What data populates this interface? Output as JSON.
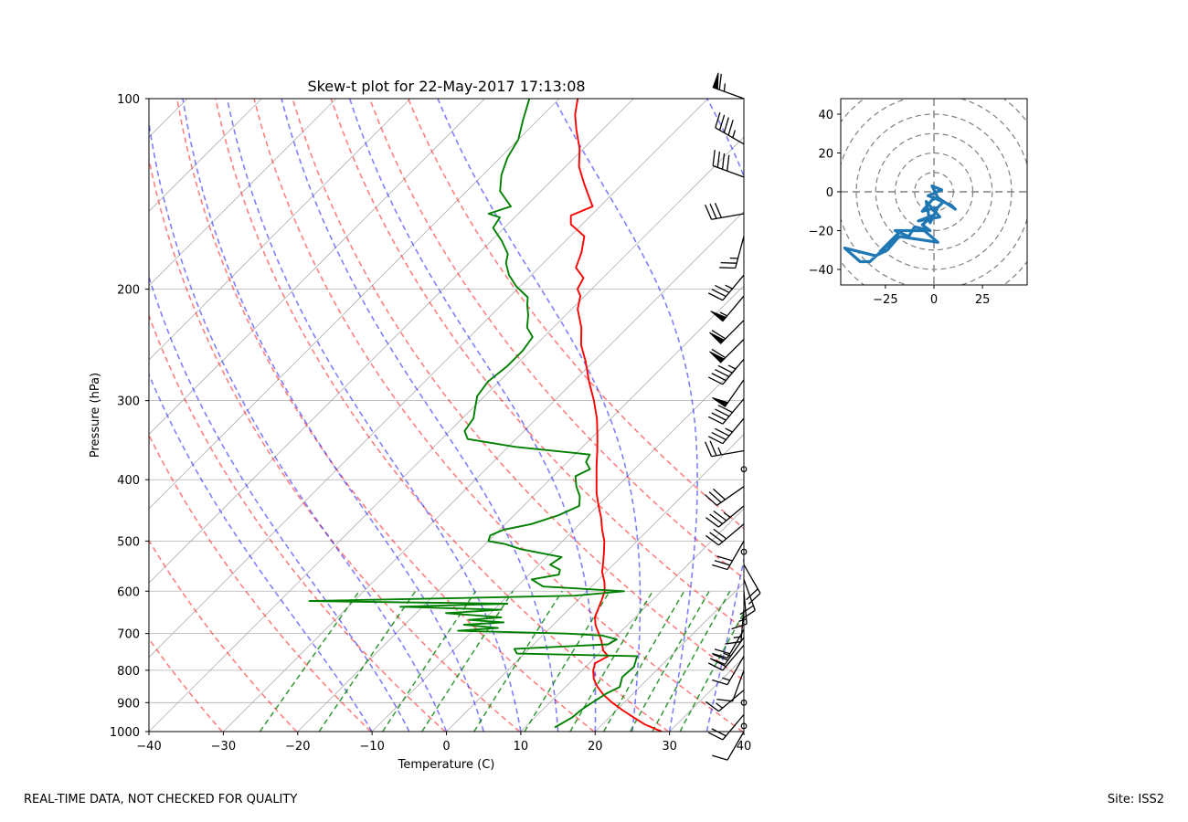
{
  "chart_data": [
    {
      "type": "skew-t",
      "title": "Skew-t plot for 22-May-2017 17:13:08",
      "xlabel": "Temperature (C)",
      "ylabel": "Pressure (hPa)",
      "xlim": [
        -40,
        40
      ],
      "ylim": [
        1000,
        100
      ],
      "x_ticks": [
        -40,
        -30,
        -20,
        -10,
        0,
        10,
        20,
        30,
        40
      ],
      "y_ticks": [
        1000,
        900,
        800,
        700,
        600,
        500,
        400,
        300,
        200,
        100
      ],
      "y_tick_labels": [
        "1000",
        "900",
        "800",
        "700",
        "600",
        "500",
        "400",
        "300",
        "200",
        "100"
      ],
      "grid": true,
      "series": [
        {
          "name": "Temperature",
          "color": "#ff0000",
          "points": [
            [
              1000,
              29.0
            ],
            [
              990,
              27.7
            ],
            [
              975,
              25.8
            ],
            [
              950,
              23.3
            ],
            [
              925,
              20.8
            ],
            [
              900,
              18.4
            ],
            [
              875,
              16.2
            ],
            [
              850,
              14.3
            ],
            [
              825,
              12.7
            ],
            [
              800,
              11.5
            ],
            [
              780,
              10.8
            ],
            [
              760,
              11.6
            ],
            [
              745,
              10.2
            ],
            [
              720,
              8.7
            ],
            [
              700,
              7.3
            ],
            [
              680,
              5.8
            ],
            [
              660,
              4.6
            ],
            [
              640,
              3.9
            ],
            [
              620,
              3.2
            ],
            [
              600,
              2.4
            ],
            [
              580,
              1.1
            ],
            [
              560,
              -0.5
            ],
            [
              540,
              -1.7
            ],
            [
              520,
              -3.0
            ],
            [
              500,
              -4.4
            ],
            [
              480,
              -6.2
            ],
            [
              460,
              -7.9
            ],
            [
              440,
              -9.9
            ],
            [
              420,
              -11.9
            ],
            [
              400,
              -13.7
            ],
            [
              380,
              -15.6
            ],
            [
              360,
              -17.5
            ],
            [
              340,
              -19.6
            ],
            [
              320,
              -21.9
            ],
            [
              300,
              -24.7
            ],
            [
              280,
              -27.9
            ],
            [
              260,
              -31.1
            ],
            [
              245,
              -33.9
            ],
            [
              230,
              -36.2
            ],
            [
              215,
              -39.2
            ],
            [
              205,
              -40.6
            ],
            [
              200,
              -41.9
            ],
            [
              192,
              -42.6
            ],
            [
              185,
              -45.0
            ],
            [
              175,
              -46.3
            ],
            [
              165,
              -48.1
            ],
            [
              158,
              -51.5
            ],
            [
              153,
              -52.7
            ],
            [
              148,
              -51.0
            ],
            [
              144,
              -52.4
            ],
            [
              136,
              -55.3
            ],
            [
              128,
              -58.2
            ],
            [
              120,
              -60.5
            ],
            [
              112,
              -63.5
            ],
            [
              106,
              -65.7
            ],
            [
              100,
              -67.5
            ]
          ]
        },
        {
          "name": "Dewpoint",
          "color": "#008000",
          "points": [
            [
              985,
              14.0
            ],
            [
              950,
              15.0
            ],
            [
              925,
              15.2
            ],
            [
              900,
              15.7
            ],
            [
              870,
              16.4
            ],
            [
              850,
              17.3
            ],
            [
              820,
              16.3
            ],
            [
              790,
              16.5
            ],
            [
              760,
              15.5
            ],
            [
              753,
              -1.0
            ],
            [
              740,
              -2.0
            ],
            [
              728,
              10.0
            ],
            [
              715,
              10.5
            ],
            [
              705,
              8.0
            ],
            [
              700,
              3.0
            ],
            [
              693,
              -12.0
            ],
            [
              686,
              -7.0
            ],
            [
              678,
              -12.0
            ],
            [
              672,
              -7.0
            ],
            [
              666,
              -12.0
            ],
            [
              660,
              -8.0
            ],
            [
              650,
              -16.0
            ],
            [
              642,
              -9.0
            ],
            [
              635,
              -23.0
            ],
            [
              628,
              -9.0
            ],
            [
              622,
              -36.0
            ],
            [
              610,
              -1.0
            ],
            [
              600,
              5.0
            ],
            [
              590,
              -6.5
            ],
            [
              575,
              -9.0
            ],
            [
              565,
              -6.0
            ],
            [
              555,
              -6.5
            ],
            [
              545,
              -8.5
            ],
            [
              530,
              -8.0
            ],
            [
              515,
              -14.5
            ],
            [
              505,
              -17.5
            ],
            [
              500,
              -20.0
            ],
            [
              490,
              -20.5
            ],
            [
              480,
              -19.5
            ],
            [
              470,
              -16.5
            ],
            [
              455,
              -14.0
            ],
            [
              440,
              -12.5
            ],
            [
              425,
              -13.7
            ],
            [
              410,
              -15.5
            ],
            [
              395,
              -17.0
            ],
            [
              385,
              -16.0
            ],
            [
              375,
              -17.5
            ],
            [
              365,
              -18.0
            ],
            [
              355,
              -29.0
            ],
            [
              345,
              -36.5
            ],
            [
              335,
              -38.0
            ],
            [
              320,
              -38.5
            ],
            [
              305,
              -40.0
            ],
            [
              295,
              -41.0
            ],
            [
              280,
              -41.5
            ],
            [
              265,
              -41.0
            ],
            [
              250,
              -41.0
            ],
            [
              238,
              -41.5
            ],
            [
              230,
              -43.5
            ],
            [
              220,
              -45.0
            ],
            [
              212,
              -46.5
            ],
            [
              206,
              -47.5
            ],
            [
              198,
              -50.5
            ],
            [
              190,
              -53.0
            ],
            [
              182,
              -55.0
            ],
            [
              176,
              -56.0
            ],
            [
              168,
              -58.5
            ],
            [
              160,
              -61.5
            ],
            [
              154,
              -62.0
            ],
            [
              152,
              -64.0
            ],
            [
              148,
              -62.0
            ],
            [
              140,
              -65.5
            ],
            [
              132,
              -67.5
            ],
            [
              124,
              -69.0
            ],
            [
              116,
              -70.0
            ],
            [
              108,
              -72.0
            ],
            [
              100,
              -74.0
            ]
          ]
        }
      ],
      "reference_lines": {
        "dry_adiabats_theta_K": [
          243,
          253,
          263,
          273,
          283,
          293,
          303,
          313,
          323,
          333,
          343,
          353
        ],
        "dry_adiabat_color": "#ff0000",
        "moist_adiabats_start_T_C": [
          -10,
          -5,
          0,
          5,
          10,
          15,
          20,
          25,
          30,
          35
        ],
        "moist_adiabat_color": "#0000ff",
        "mixing_ratio_lines_g_per_kg": [
          0.5,
          1,
          2,
          3,
          5,
          8,
          12,
          16,
          20,
          24,
          30
        ],
        "mixing_ratio_color": "#008000",
        "mixing_ratio_top_hPa": 600
      },
      "wind_barbs": [
        {
          "p": 100,
          "speed_kt": 65,
          "dir_deg": 290
        },
        {
          "p": 118,
          "speed_kt": 45,
          "dir_deg": 300
        },
        {
          "p": 133,
          "speed_kt": 40,
          "dir_deg": 290
        },
        {
          "p": 152,
          "speed_kt": 30,
          "dir_deg": 260
        },
        {
          "p": 165,
          "speed_kt": 25,
          "dir_deg": 195
        },
        {
          "p": 190,
          "speed_kt": 35,
          "dir_deg": 220
        },
        {
          "p": 205,
          "speed_kt": 55,
          "dir_deg": 220
        },
        {
          "p": 224,
          "speed_kt": 60,
          "dir_deg": 225
        },
        {
          "p": 240,
          "speed_kt": 60,
          "dir_deg": 225
        },
        {
          "p": 258,
          "speed_kt": 45,
          "dir_deg": 220
        },
        {
          "p": 278,
          "speed_kt": 50,
          "dir_deg": 215
        },
        {
          "p": 298,
          "speed_kt": 40,
          "dir_deg": 220
        },
        {
          "p": 320,
          "speed_kt": 35,
          "dir_deg": 220
        },
        {
          "p": 360,
          "speed_kt": 25,
          "dir_deg": 260
        },
        {
          "p": 385,
          "speed_kt": 0,
          "dir_deg": 0
        },
        {
          "p": 410,
          "speed_kt": 30,
          "dir_deg": 235
        },
        {
          "p": 440,
          "speed_kt": 35,
          "dir_deg": 230
        },
        {
          "p": 470,
          "speed_kt": 30,
          "dir_deg": 230
        },
        {
          "p": 500,
          "speed_kt": 30,
          "dir_deg": 210
        },
        {
          "p": 520,
          "speed_kt": 0,
          "dir_deg": 0
        },
        {
          "p": 545,
          "speed_kt": 20,
          "dir_deg": 150
        },
        {
          "p": 575,
          "speed_kt": 20,
          "dir_deg": 160
        },
        {
          "p": 600,
          "speed_kt": 15,
          "dir_deg": 175
        },
        {
          "p": 640,
          "speed_kt": 15,
          "dir_deg": 185
        },
        {
          "p": 690,
          "speed_kt": 20,
          "dir_deg": 210
        },
        {
          "p": 710,
          "speed_kt": 25,
          "dir_deg": 215
        },
        {
          "p": 730,
          "speed_kt": 20,
          "dir_deg": 220
        },
        {
          "p": 760,
          "speed_kt": 15,
          "dir_deg": 210
        },
        {
          "p": 800,
          "speed_kt": 10,
          "dir_deg": 200
        },
        {
          "p": 860,
          "speed_kt": 15,
          "dir_deg": 230
        },
        {
          "p": 900,
          "speed_kt": 0,
          "dir_deg": 0
        },
        {
          "p": 940,
          "speed_kt": 20,
          "dir_deg": 220
        },
        {
          "p": 980,
          "speed_kt": 0,
          "dir_deg": 0
        },
        {
          "p": 1000,
          "speed_kt": 10,
          "dir_deg": 210
        }
      ]
    },
    {
      "type": "hodograph",
      "xlim": [
        -48,
        48
      ],
      "ylim": [
        -48,
        48
      ],
      "x_ticks": [
        -25,
        0,
        25
      ],
      "y_ticks": [
        40,
        20,
        0,
        -20,
        -40
      ],
      "ring_radii": [
        10,
        20,
        30,
        40,
        50,
        60
      ],
      "line_color": "#1f77b4",
      "u": [
        2,
        5,
        -3,
        4,
        -1,
        2,
        11,
        9,
        2,
        0,
        -6,
        2,
        -2,
        -4,
        3,
        -8,
        0,
        -6,
        -2,
        -10,
        -13,
        -20,
        -5,
        2,
        -18,
        -24,
        -30,
        -46,
        -38,
        -33,
        -21,
        -18,
        -28
      ],
      "v": [
        -8,
        -5,
        -2,
        1,
        3,
        -3,
        -9,
        -7,
        -4,
        -3,
        -10,
        -8,
        -16,
        -5,
        -13,
        -15,
        -12,
        -17,
        -20,
        -18,
        -23,
        -20,
        -20,
        -26,
        -23,
        -30,
        -33,
        -29,
        -36,
        -36,
        -25,
        -21,
        -31
      ]
    }
  ],
  "footer": {
    "left": "REAL-TIME DATA, NOT CHECKED FOR QUALITY",
    "right": "Site: ISS2"
  }
}
